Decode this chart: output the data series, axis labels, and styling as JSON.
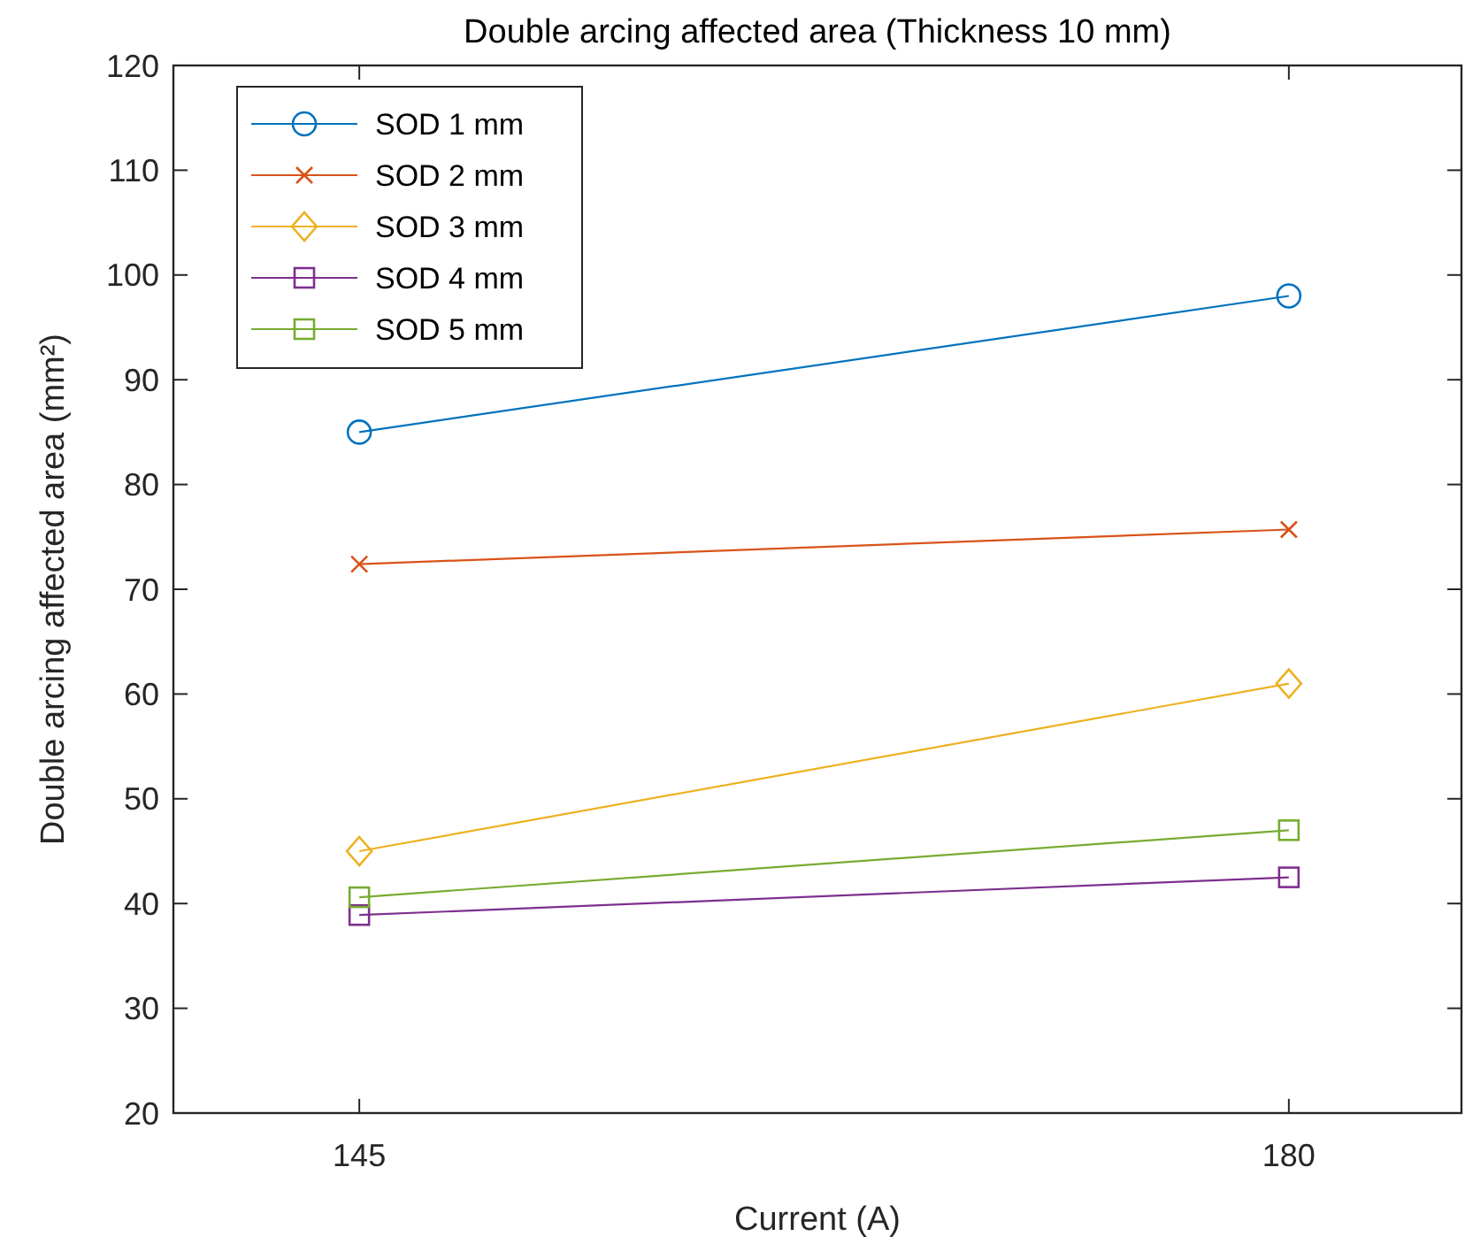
{
  "chart_data": {
    "type": "line",
    "title": "Double arcing affected area (Thickness 10 mm)",
    "xlabel": "Current (A)",
    "ylabel": "Double arcing affected area (mm²)",
    "x": [
      145,
      180
    ],
    "xlim": [
      138,
      186.5
    ],
    "xticks": [
      145,
      180
    ],
    "ylim": [
      20,
      120
    ],
    "yticks": [
      20,
      30,
      40,
      50,
      60,
      70,
      80,
      90,
      100,
      110,
      120
    ],
    "grid": false,
    "legend": "top left",
    "series": [
      {
        "name": "SOD 1 mm",
        "color": "#0072bd",
        "marker": "circle",
        "values": [
          85,
          98
        ]
      },
      {
        "name": "SOD 2 mm",
        "color": "#d95319",
        "marker": "cross",
        "values": [
          72.4,
          75.7
        ]
      },
      {
        "name": "SOD 3 mm",
        "color": "#edb120",
        "marker": "diamond",
        "values": [
          45,
          61
        ]
      },
      {
        "name": "SOD 4 mm",
        "color": "#7e2f8e",
        "marker": "square",
        "values": [
          38.9,
          42.5
        ]
      },
      {
        "name": "SOD 5 mm",
        "color": "#77ac30",
        "marker": "square",
        "values": [
          40.6,
          47
        ]
      }
    ]
  }
}
